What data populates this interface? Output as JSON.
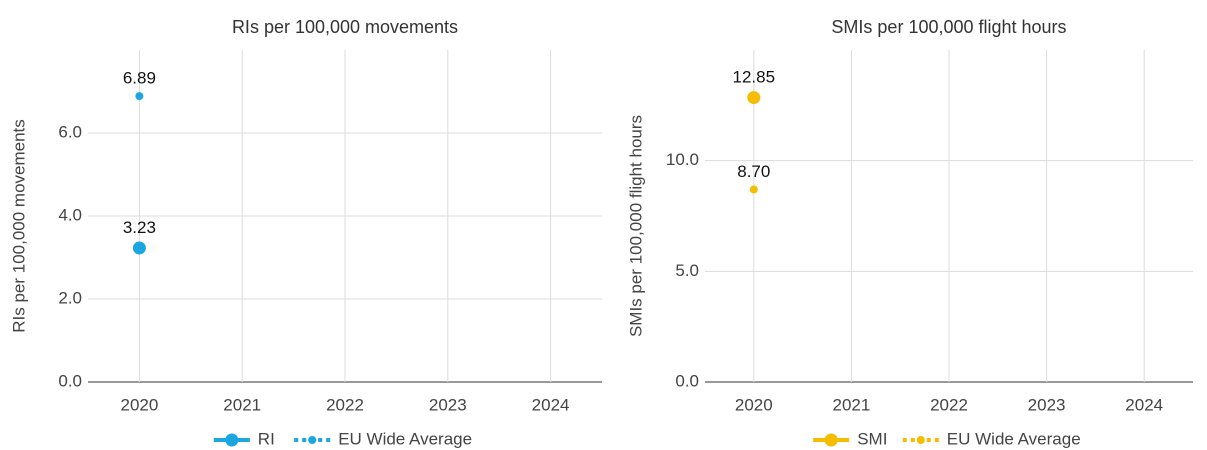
{
  "chart_data": [
    {
      "type": "line",
      "title": "RIs per 100,000 movements",
      "y_label": "RIs per 100,000 movements",
      "categories": [
        "2020",
        "2021",
        "2022",
        "2023",
        "2024"
      ],
      "ylim": [
        0,
        8
      ],
      "yticks": [
        {
          "value": 0,
          "label": "0.0"
        },
        {
          "value": 2,
          "label": "2.0"
        },
        {
          "value": 4,
          "label": "4.0"
        },
        {
          "value": 6,
          "label": "6.0"
        }
      ],
      "grid": true,
      "legend": "bottom",
      "series": [
        {
          "name": "RI",
          "color": "#1aa7e0",
          "line_style": "solid",
          "values": [
            3.23,
            null,
            null,
            null,
            null
          ]
        },
        {
          "name": "EU Wide Average",
          "color": "#1aa7e0",
          "line_style": "dotted",
          "values": [
            6.89,
            null,
            null,
            null,
            null
          ]
        }
      ]
    },
    {
      "type": "line",
      "title": "SMIs per 100,000 flight hours",
      "y_label": "SMIs per 100,000 flight hours",
      "categories": [
        "2020",
        "2021",
        "2022",
        "2023",
        "2024"
      ],
      "ylim": [
        0,
        15
      ],
      "yticks": [
        {
          "value": 0,
          "label": "0.0"
        },
        {
          "value": 5,
          "label": "5.0"
        },
        {
          "value": 10,
          "label": "10.0"
        }
      ],
      "grid": true,
      "legend": "bottom",
      "series": [
        {
          "name": "SMI",
          "color": "#f5bc00",
          "line_style": "solid",
          "values": [
            12.85,
            null,
            null,
            null,
            null
          ]
        },
        {
          "name": "EU Wide Average",
          "color": "#f5bc00",
          "line_style": "dotted",
          "values": [
            8.7,
            null,
            null,
            null,
            null
          ],
          "value_labels": [
            "8.70",
            null,
            null,
            null,
            null
          ]
        }
      ]
    }
  ]
}
